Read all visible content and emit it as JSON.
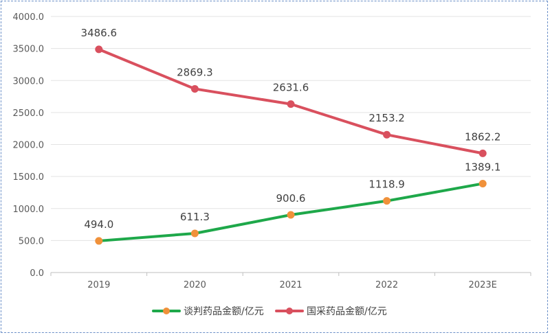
{
  "chart_data": {
    "type": "line",
    "categories": [
      "2019",
      "2020",
      "2021",
      "2022",
      "2023E"
    ],
    "series": [
      {
        "name": "谈判药品金额/亿元",
        "values": [
          494.0,
          611.3,
          900.6,
          1118.9,
          1389.1
        ],
        "line_color": "#1ea84a",
        "marker_color": "#f0913a"
      },
      {
        "name": "国采药品金额/亿元",
        "values": [
          3486.6,
          2869.3,
          2631.6,
          2153.2,
          1862.2
        ],
        "line_color": "#d9505e",
        "marker_color": "#d9505e"
      }
    ],
    "data_labels": [
      [
        "494.0",
        "611.3",
        "900.6",
        "1118.9",
        "1389.1"
      ],
      [
        "3486.6",
        "2869.3",
        "2631.6",
        "2153.2",
        "1862.2"
      ]
    ],
    "y_ticks": [
      "0.0",
      "500.0",
      "1000.0",
      "1500.0",
      "2000.0",
      "2500.0",
      "3000.0",
      "3500.0",
      "4000.0"
    ],
    "ylim": [
      0,
      4000
    ],
    "grid": true,
    "legend_position": "bottom",
    "title": "",
    "xlabel": "",
    "ylabel": ""
  }
}
